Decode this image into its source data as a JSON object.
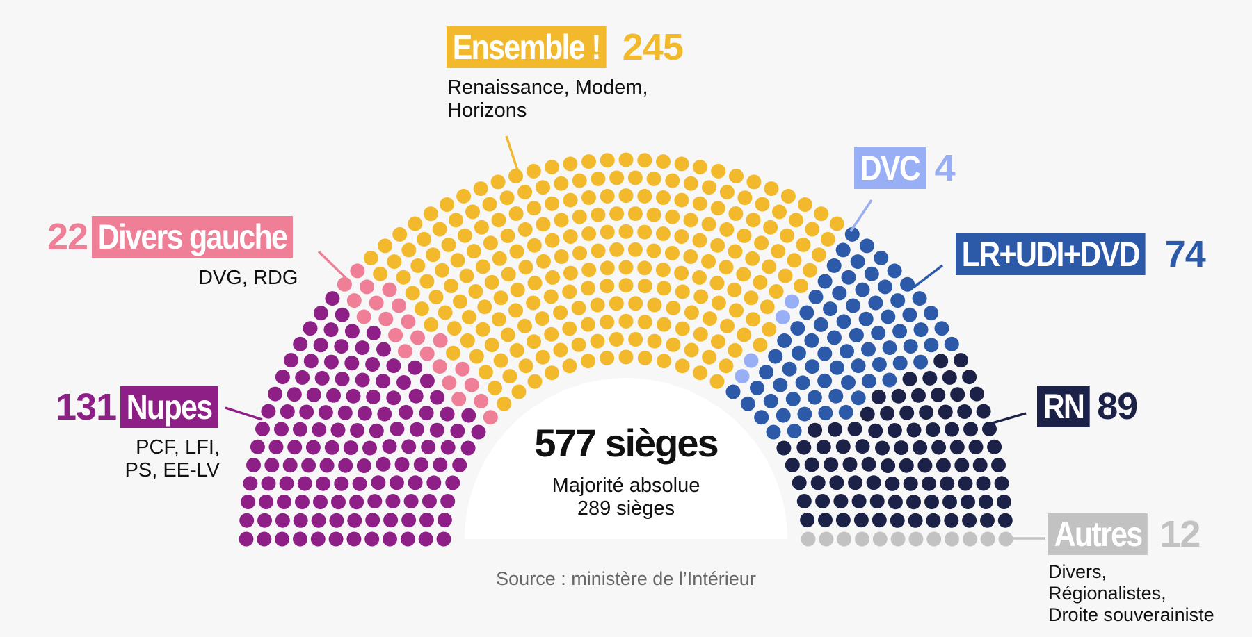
{
  "chart_data": {
    "type": "parliament",
    "title": "577 sièges",
    "subtitle": "Majorité absolue\n289 sièges",
    "total_seats": 577,
    "majority": 289,
    "source": "Source : ministère de l’Intérieur",
    "parties": [
      {
        "key": "nupes",
        "name": "Nupes",
        "seats": 131,
        "seats_label": "131",
        "color": "#8e1f86",
        "detail": "PCF,  LFI,\nPS, EE-LV"
      },
      {
        "key": "dvg",
        "name": "Divers gauche",
        "seats": 22,
        "seats_label": "22",
        "color": "#ee7f96",
        "detail": "DVG, RDG"
      },
      {
        "key": "ensemble",
        "name": "Ensemble !",
        "seats": 245,
        "seats_label": "245",
        "color": "#f3b92c",
        "detail": "Renaissance, Modem,\nHorizons"
      },
      {
        "key": "dvc",
        "name": "DVC",
        "seats": 4,
        "seats_label": "4",
        "color": "#98aef5",
        "detail": ""
      },
      {
        "key": "lr",
        "name": "LR+UDI+DVD",
        "seats": 74,
        "seats_label": "74",
        "color": "#2c5aa8",
        "detail": ""
      },
      {
        "key": "rn",
        "name": "RN",
        "seats": 89,
        "seats_label": "89",
        "color": "#1c2148",
        "detail": ""
      },
      {
        "key": "autres",
        "name": "Autres",
        "seats": 12,
        "seats_label": "12",
        "color": "#c2c2c2",
        "detail": "Divers,\nRégionalistes,\nDroite souverainiste"
      }
    ]
  }
}
